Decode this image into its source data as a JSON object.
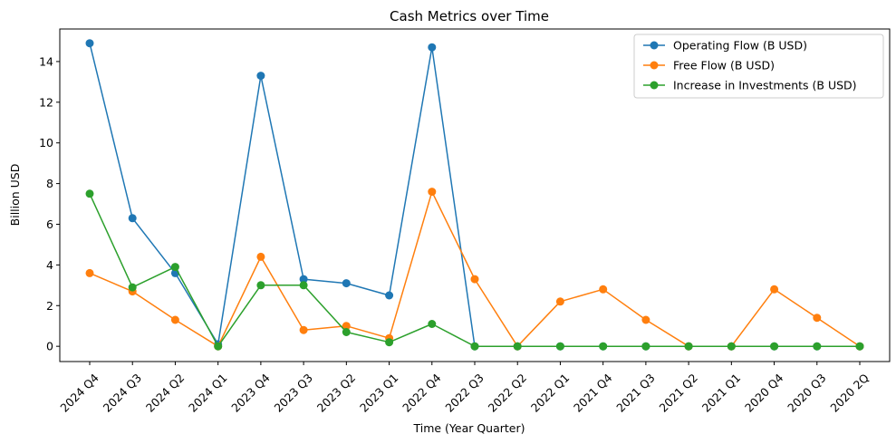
{
  "chart_data": {
    "type": "line",
    "title": "Cash Metrics over Time",
    "xlabel": "Time (Year Quarter)",
    "ylabel": "Billion USD",
    "categories": [
      "2024 Q4",
      "2024 Q3",
      "2024 Q2",
      "2024 Q1",
      "2023 Q4",
      "2023 Q3",
      "2023 Q2",
      "2023 Q1",
      "2022 Q4",
      "2022 Q3",
      "2022 Q2",
      "2022 Q1",
      "2021 Q4",
      "2021 Q3",
      "2021 Q2",
      "2021 Q1",
      "2020 Q4",
      "2020 Q3",
      "2020 2Q"
    ],
    "ylim": [
      -0.75,
      15.6
    ],
    "yticks": [
      0,
      2,
      4,
      6,
      8,
      10,
      12,
      14
    ],
    "grid": false,
    "legend_position": "top-right",
    "series": [
      {
        "name": "Operating Flow (B USD)",
        "color": "#1f77b4",
        "values": [
          14.9,
          6.3,
          3.6,
          0.1,
          13.3,
          3.3,
          3.1,
          2.5,
          14.7,
          0,
          0,
          0,
          0,
          0,
          0,
          0,
          0,
          0,
          0
        ]
      },
      {
        "name": "Free Flow (B USD)",
        "color": "#ff7f0e",
        "values": [
          3.6,
          2.7,
          1.3,
          0,
          4.4,
          0.8,
          1.0,
          0.4,
          7.6,
          3.3,
          0,
          2.2,
          2.8,
          1.3,
          0,
          0,
          2.8,
          1.4,
          0
        ]
      },
      {
        "name": "Increase in Investments (B USD)",
        "color": "#2ca02c",
        "values": [
          7.5,
          2.9,
          3.9,
          0,
          3.0,
          3.0,
          0.7,
          0.2,
          1.1,
          0,
          0,
          0,
          0,
          0,
          0,
          0,
          0,
          0,
          0
        ]
      }
    ]
  }
}
